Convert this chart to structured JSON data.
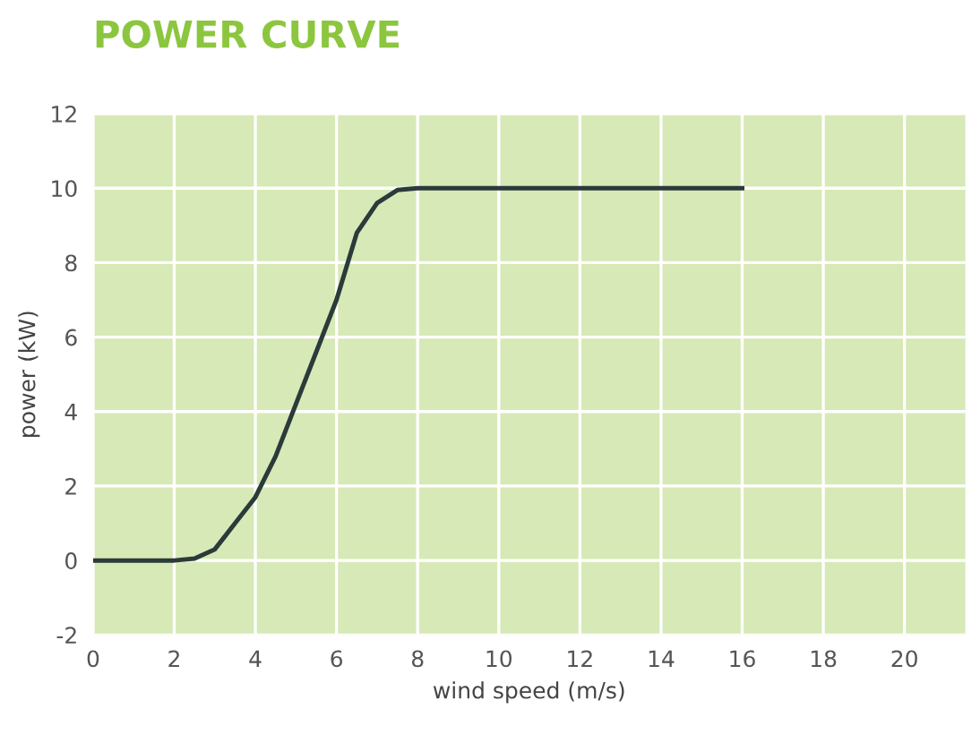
{
  "chart_data": {
    "type": "line",
    "title": "POWER CURVE",
    "xlabel": "wind speed (m/s)",
    "ylabel": "power (kW)",
    "x": [
      0,
      1,
      2,
      2.5,
      3,
      3.5,
      4,
      4.5,
      5,
      5.5,
      6,
      6.5,
      7,
      7.5,
      8,
      10,
      12,
      14,
      16
    ],
    "series": [
      {
        "color": "#2b3a3a",
        "values": [
          0,
          0,
          0,
          0.05,
          0.3,
          1.0,
          1.7,
          2.8,
          4.2,
          5.6,
          7.0,
          8.8,
          9.6,
          9.95,
          10,
          10,
          10,
          10,
          10
        ]
      }
    ],
    "xlim": [
      0,
      21.5
    ],
    "xticks": [
      0,
      2,
      4,
      6,
      8,
      10,
      12,
      14,
      16,
      18,
      20
    ],
    "ylim": [
      -2,
      12
    ],
    "yticks": [
      -2,
      0,
      2,
      4,
      6,
      8,
      10,
      12
    ],
    "grid": true,
    "marker": "none",
    "line_style": "solid"
  }
}
